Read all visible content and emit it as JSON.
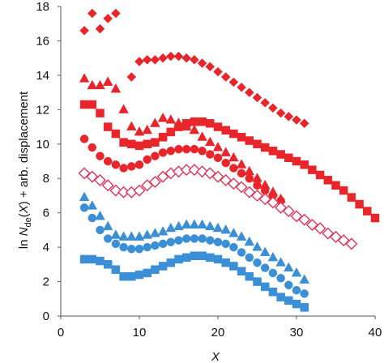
{
  "chart_data": {
    "type": "scatter",
    "title": "",
    "xlabel": "X",
    "ylabel_parts": [
      "ln ",
      "N",
      "de",
      "(",
      "X",
      ") + arb. displacement"
    ],
    "xlim": [
      0,
      40
    ],
    "ylim": [
      0,
      18
    ],
    "x_ticks": [
      0,
      10,
      20,
      30,
      40
    ],
    "y_ticks": [
      0,
      2,
      4,
      6,
      8,
      10,
      12,
      14,
      16,
      18
    ],
    "grid": false,
    "legend": "none",
    "colors": {
      "red": "#e8252b",
      "pink": "#e0355a",
      "blue": "#3b8fd6",
      "axis": "#555555"
    },
    "series": [
      {
        "marker": "diamond",
        "filled": true,
        "color": "red",
        "x": [
          3,
          4,
          5,
          6,
          7,
          9,
          10,
          11,
          12,
          13,
          14,
          15,
          16,
          17,
          18,
          19,
          20,
          21,
          22,
          23,
          24,
          25,
          26,
          27,
          28,
          29,
          30,
          31
        ],
        "y": [
          16.6,
          17.6,
          16.7,
          17.3,
          17.6,
          13.9,
          14.8,
          14.9,
          14.9,
          15.0,
          15.1,
          15.1,
          15.0,
          14.9,
          14.7,
          14.5,
          14.2,
          13.9,
          13.6,
          13.3,
          13.0,
          12.7,
          12.4,
          12.1,
          11.8,
          11.6,
          11.4,
          11.2
        ]
      },
      {
        "marker": "square",
        "filled": true,
        "color": "red",
        "x": [
          3,
          4,
          5,
          6,
          7,
          8,
          9,
          10,
          11,
          12,
          13,
          14,
          15,
          16,
          17,
          18,
          19,
          20,
          21,
          22,
          23,
          24,
          25,
          26,
          27,
          28,
          29,
          30,
          31,
          32,
          33,
          34,
          35,
          36,
          37,
          38,
          39,
          40
        ],
        "y": [
          12.3,
          12.3,
          11.8,
          11.0,
          10.6,
          10.1,
          10.0,
          9.9,
          10.0,
          10.1,
          10.4,
          10.7,
          11.0,
          11.2,
          11.3,
          11.3,
          11.2,
          11.0,
          10.8,
          10.6,
          10.4,
          10.2,
          10.0,
          9.8,
          9.6,
          9.4,
          9.2,
          9.0,
          8.8,
          8.5,
          8.2,
          7.9,
          7.6,
          7.3,
          6.9,
          6.5,
          6.1,
          5.7
        ]
      },
      {
        "marker": "triangle",
        "filled": true,
        "color": "red",
        "x": [
          3,
          4,
          5,
          6,
          7,
          8,
          9,
          10,
          11,
          12,
          13,
          14,
          15,
          16,
          17,
          18,
          19,
          20,
          21,
          22,
          23,
          24,
          25,
          26,
          27,
          28
        ],
        "y": [
          13.8,
          13.4,
          13.4,
          13.6,
          13.2,
          12.0,
          11.0,
          10.7,
          10.8,
          11.2,
          11.5,
          11.4,
          11.2,
          11.0,
          10.8,
          10.4,
          10.1,
          9.8,
          9.5,
          9.2,
          8.8,
          8.4,
          8.0,
          7.6,
          7.2,
          6.8
        ]
      },
      {
        "marker": "circle",
        "filled": true,
        "color": "red",
        "x": [
          3,
          4,
          5,
          6,
          7,
          8,
          9,
          10,
          11,
          12,
          13,
          14,
          15,
          16,
          17,
          18,
          19,
          20,
          21,
          22,
          23,
          24,
          25,
          26,
          27,
          28
        ],
        "y": [
          10.3,
          9.8,
          9.3,
          9.0,
          8.8,
          8.6,
          8.7,
          8.8,
          9.1,
          9.3,
          9.5,
          9.6,
          9.7,
          9.7,
          9.7,
          9.6,
          9.4,
          9.2,
          8.9,
          8.6,
          8.3,
          8.0,
          7.6,
          7.3,
          7.0,
          6.7
        ]
      },
      {
        "marker": "diamond",
        "filled": false,
        "color": "pink",
        "x": [
          3,
          4,
          5,
          6,
          7,
          8,
          9,
          10,
          11,
          12,
          13,
          14,
          15,
          16,
          17,
          18,
          19,
          20,
          21,
          22,
          23,
          24,
          25,
          26,
          27,
          28,
          29,
          30,
          31,
          32,
          33,
          34,
          35,
          36,
          37
        ],
        "y": [
          8.3,
          8.1,
          7.9,
          7.6,
          7.3,
          7.2,
          7.2,
          7.3,
          7.6,
          7.8,
          8.1,
          8.3,
          8.4,
          8.5,
          8.5,
          8.4,
          8.3,
          8.1,
          7.9,
          7.7,
          7.5,
          7.2,
          7.0,
          6.8,
          6.6,
          6.3,
          6.1,
          5.8,
          5.6,
          5.3,
          5.1,
          4.8,
          4.6,
          4.4,
          4.2
        ]
      },
      {
        "marker": "triangle",
        "filled": true,
        "color": "blue",
        "x": [
          3,
          4,
          5,
          6,
          7,
          8,
          9,
          10,
          11,
          12,
          13,
          14,
          15,
          16,
          17,
          18,
          19,
          20,
          21,
          22,
          23,
          24,
          25,
          26,
          27,
          28,
          29,
          30,
          31
        ],
        "y": [
          6.9,
          6.4,
          5.8,
          5.2,
          4.7,
          4.6,
          4.6,
          4.6,
          4.7,
          4.8,
          4.9,
          5.1,
          5.2,
          5.3,
          5.3,
          5.3,
          5.2,
          5.1,
          5.0,
          4.8,
          4.6,
          4.3,
          4.0,
          3.7,
          3.4,
          3.1,
          2.8,
          2.5,
          2.1
        ]
      },
      {
        "marker": "circle",
        "filled": true,
        "color": "blue",
        "x": [
          3,
          4,
          5,
          6,
          7,
          8,
          9,
          10,
          11,
          12,
          13,
          14,
          15,
          16,
          17,
          18,
          19,
          20,
          21,
          22,
          23,
          24,
          25,
          26,
          27,
          28,
          29,
          30,
          31
        ],
        "y": [
          6.3,
          5.7,
          5.0,
          4.5,
          4.2,
          4.0,
          3.9,
          3.9,
          4.0,
          4.1,
          4.2,
          4.3,
          4.4,
          4.5,
          4.5,
          4.5,
          4.4,
          4.3,
          4.2,
          4.0,
          3.7,
          3.4,
          3.1,
          2.8,
          2.5,
          2.2,
          1.8,
          1.5,
          1.3
        ]
      },
      {
        "marker": "square",
        "filled": true,
        "color": "blue",
        "x": [
          3,
          4,
          5,
          6,
          7,
          8,
          9,
          10,
          11,
          12,
          13,
          14,
          15,
          16,
          17,
          18,
          19,
          20,
          21,
          22,
          23,
          24,
          25,
          26,
          27,
          28,
          29,
          30,
          31
        ],
        "y": [
          3.3,
          3.3,
          3.2,
          3.0,
          2.7,
          2.3,
          2.3,
          2.4,
          2.5,
          2.7,
          2.9,
          3.1,
          3.3,
          3.4,
          3.5,
          3.5,
          3.4,
          3.3,
          3.1,
          2.9,
          2.6,
          2.3,
          2.0,
          1.7,
          1.4,
          1.1,
          0.9,
          0.7,
          0.5
        ]
      }
    ]
  }
}
